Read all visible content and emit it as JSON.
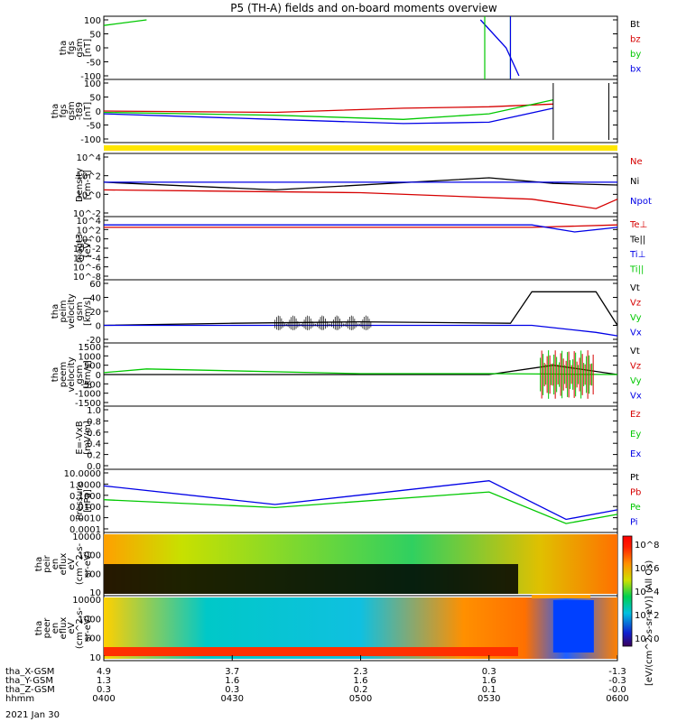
{
  "title": "P5 (TH-A) fields and on-board moments overview",
  "date_label": "2021 Jan 30",
  "colors": {
    "black": "#000000",
    "red": "#d60000",
    "green": "#00c800",
    "blue": "#0000e6",
    "yellow": "#ffe600"
  },
  "panels": [
    {
      "ylabel": [
        "tha",
        "fgs",
        "gsm",
        "[nT]"
      ],
      "ticks": [
        "100",
        "50",
        "0",
        "-50",
        "-100"
      ],
      "legend": [
        {
          "text": "Bt",
          "color": "black"
        },
        {
          "text": "bz",
          "color": "red"
        },
        {
          "text": "by",
          "color": "green"
        },
        {
          "text": "bx",
          "color": "blue"
        }
      ]
    },
    {
      "ylabel": [
        "tha",
        "fgs",
        "gsm",
        "-t89",
        "[nT]"
      ],
      "ticks": [
        "100",
        "50",
        "0",
        "-50",
        "-100"
      ],
      "legend": []
    },
    {
      "ylabel": [
        "Density",
        "[cm-3]"
      ],
      "ticks": [
        "10^4",
        "10^2",
        "10^0",
        "10^-2"
      ],
      "legend": [
        {
          "text": "Ne",
          "color": "red"
        },
        {
          "text": "Ni",
          "color": "black"
        },
        {
          "text": "Npot",
          "color": "blue"
        }
      ]
    },
    {
      "ylabel": [
        "magt3",
        "[eV]"
      ],
      "ticks": [
        "10^4",
        "10^2",
        "10^0",
        "10^-2",
        "10^-4",
        "10^-6",
        "10^-8"
      ],
      "legend": [
        {
          "text": "Te⊥",
          "color": "red"
        },
        {
          "text": "Te||",
          "color": "black"
        },
        {
          "text": "Ti⊥",
          "color": "blue"
        },
        {
          "text": "Ti||",
          "color": "green"
        }
      ]
    },
    {
      "ylabel": [
        "tha",
        "peim",
        "velocity",
        "gsm",
        "[km/s]"
      ],
      "ticks": [
        "60",
        "40",
        "20",
        "0",
        "-20"
      ],
      "legend": [
        {
          "text": "Vt",
          "color": "black"
        },
        {
          "text": "Vz",
          "color": "red"
        },
        {
          "text": "Vy",
          "color": "green"
        },
        {
          "text": "Vx",
          "color": "blue"
        }
      ]
    },
    {
      "ylabel": [
        "tha",
        "peem",
        "velocity",
        "gsm",
        "[km/s]"
      ],
      "ticks": [
        "1500",
        "1000",
        "500",
        "0",
        "-500",
        "-1000",
        "-1500"
      ],
      "legend": [
        {
          "text": "Vt",
          "color": "black"
        },
        {
          "text": "Vz",
          "color": "red"
        },
        {
          "text": "Vy",
          "color": "green"
        },
        {
          "text": "Vx",
          "color": "blue"
        }
      ]
    },
    {
      "ylabel": [
        "E=-VxB",
        "[mV/m]"
      ],
      "ticks": [
        "1.0",
        "0.8",
        "0.6",
        "0.4",
        "0.2",
        "0.0"
      ],
      "legend": [
        {
          "text": "Ez",
          "color": "red"
        },
        {
          "text": "Ey",
          "color": "green"
        },
        {
          "text": "Ex",
          "color": "blue"
        }
      ]
    },
    {
      "ylabel": [
        "Pressure",
        "[nPa]"
      ],
      "ticks": [
        "10.0000",
        "1.0000",
        "0.1000",
        "0.0100",
        "0.0010",
        "0.0001"
      ],
      "legend": [
        {
          "text": "Pt",
          "color": "black"
        },
        {
          "text": "Pb",
          "color": "red"
        },
        {
          "text": "Pe",
          "color": "green"
        },
        {
          "text": "Pi",
          "color": "blue"
        }
      ]
    },
    {
      "ylabel": [
        "tha",
        "peir",
        "en",
        "eflux",
        "eV",
        "(cm^2-s-",
        "sr-eV)"
      ],
      "ticks": [
        "10000",
        "1000",
        "100",
        "10"
      ],
      "legend": []
    },
    {
      "ylabel": [
        "tha",
        "peer",
        "en",
        "eflux",
        "eV",
        "(cm^2-s-",
        "sr-eV)"
      ],
      "ticks": [
        "10000",
        "1000",
        "100",
        "10"
      ],
      "legend": []
    }
  ],
  "colorbar": {
    "title": "[eV/(cm^2-s-sr-eV)] (All Qs)",
    "ticks": [
      "10^8",
      "10^6",
      "10^4",
      "10^2",
      "10^0"
    ]
  },
  "x_axis": {
    "rows": [
      {
        "label": "tha_X-GSM",
        "values": [
          "4.9",
          "3.7",
          "2.3",
          "0.3",
          "-1.3"
        ]
      },
      {
        "label": "tha_Y-GSM",
        "values": [
          "1.3",
          "1.6",
          "1.6",
          "1.6",
          "-0.3"
        ]
      },
      {
        "label": "tha_Z-GSM",
        "values": [
          "0.3",
          "0.3",
          "0.2",
          "0.1",
          "-0.0"
        ]
      },
      {
        "label": "hhmm",
        "values": [
          "0400",
          "0430",
          "0500",
          "0530",
          "0600"
        ]
      }
    ]
  },
  "chart_data": {
    "type": "line",
    "title": "P5 (TH-A) fields and on-board moments overview",
    "x_range_hhmm": [
      "0400",
      "0600"
    ],
    "x_ticks": [
      "0400",
      "0430",
      "0500",
      "0530",
      "0600"
    ],
    "panels": [
      {
        "name": "tha fgs gsm [nT]",
        "ylim": [
          -100,
          100
        ],
        "series": [
          {
            "name": "by",
            "x": [
              "0400",
              "0410"
            ],
            "y": [
              80,
              100
            ]
          },
          {
            "name": "bx",
            "x": [
              "0528",
              "0534",
              "0537"
            ],
            "y": [
              100,
              0,
              -100
            ]
          }
        ]
      },
      {
        "name": "tha fgs gsm -t89 [nT]",
        "ylim": [
          -100,
          100
        ],
        "series": [
          {
            "name": "bz",
            "x": [
              "0400",
              "0440",
              "0510",
              "0530",
              "0545"
            ],
            "y": [
              0,
              -5,
              10,
              15,
              25
            ]
          },
          {
            "name": "by",
            "x": [
              "0400",
              "0440",
              "0510",
              "0530",
              "0545"
            ],
            "y": [
              -5,
              -15,
              -30,
              -10,
              40
            ]
          },
          {
            "name": "bx",
            "x": [
              "0400",
              "0440",
              "0510",
              "0530",
              "0545"
            ],
            "y": [
              -10,
              -30,
              -45,
              -40,
              10
            ]
          }
        ]
      },
      {
        "name": "Density [cm-3]",
        "scale": "log",
        "ylim": [
          0.01,
          10000
        ],
        "series": [
          {
            "name": "Ne",
            "x": [
              "0400",
              "0500",
              "0540",
              "0555",
              "0600"
            ],
            "y": [
              3,
              1.5,
              0.3,
              0.03,
              0.3
            ]
          },
          {
            "name": "Ni",
            "x": [
              "0400",
              "0440",
              "0530",
              "0545",
              "0600"
            ],
            "y": [
              20,
              3,
              60,
              15,
              10
            ]
          },
          {
            "name": "Npot",
            "x": [
              "0400",
              "0600"
            ],
            "y": [
              20,
              20
            ]
          }
        ]
      },
      {
        "name": "magt3 [eV]",
        "scale": "log",
        "ylim": [
          1e-08,
          10000
        ],
        "series": [
          {
            "name": "Te⊥",
            "x": [
              "0400",
              "0540",
              "0600"
            ],
            "y": [
              300,
              300,
              1000
            ]
          },
          {
            "name": "Ti⊥",
            "x": [
              "0400",
              "0540",
              "0550",
              "0600"
            ],
            "y": [
              1000,
              1000,
              30,
              300
            ]
          }
        ]
      },
      {
        "name": "tha peim velocity gsm [km/s]",
        "ylim": [
          -20,
          60
        ],
        "series": [
          {
            "name": "Vt",
            "x": [
              "0400",
              "0430",
              "0500",
              "0535",
              "0540",
              "0555",
              "0600"
            ],
            "y": [
              0,
              3,
              5,
              3,
              48,
              48,
              0
            ]
          },
          {
            "name": "Vx",
            "x": [
              "0400",
              "0540",
              "0555",
              "0600"
            ],
            "y": [
              0,
              0,
              -10,
              -15
            ]
          }
        ]
      },
      {
        "name": "tha peem velocity gsm [km/s]",
        "ylim": [
          -1500,
          1500
        ],
        "series": [
          {
            "name": "Vt",
            "x": [
              "0400",
              "0530",
              "0545",
              "0600"
            ],
            "y": [
              0,
              0,
              500,
              0
            ]
          },
          {
            "name": "Vy",
            "x": [
              "0400",
              "0410",
              "0500",
              "0530",
              "0600"
            ],
            "y": [
              100,
              300,
              50,
              50,
              0
            ]
          }
        ]
      },
      {
        "name": "E=-VxB [mV/m]",
        "ylim": [
          0,
          1
        ],
        "series": []
      },
      {
        "name": "Pressure [nPa]",
        "scale": "log",
        "ylim": [
          0.0001,
          10
        ],
        "series": [
          {
            "name": "Pi",
            "x": [
              "0400",
              "0440",
              "0530",
              "0548",
              "0600"
            ],
            "y": [
              0.7,
              0.015,
              2,
              0.0007,
              0.005
            ]
          },
          {
            "name": "Pe",
            "x": [
              "0400",
              "0440",
              "0530",
              "0548",
              "0600"
            ],
            "y": [
              0.04,
              0.008,
              0.2,
              0.0003,
              0.002
            ]
          }
        ]
      },
      {
        "name": "tha peir en eflux eV",
        "type": "heatmap",
        "ylim": [
          10,
          10000
        ],
        "series": []
      },
      {
        "name": "tha peer en eflux eV",
        "type": "heatmap",
        "ylim": [
          10,
          10000
        ],
        "series": []
      }
    ]
  }
}
